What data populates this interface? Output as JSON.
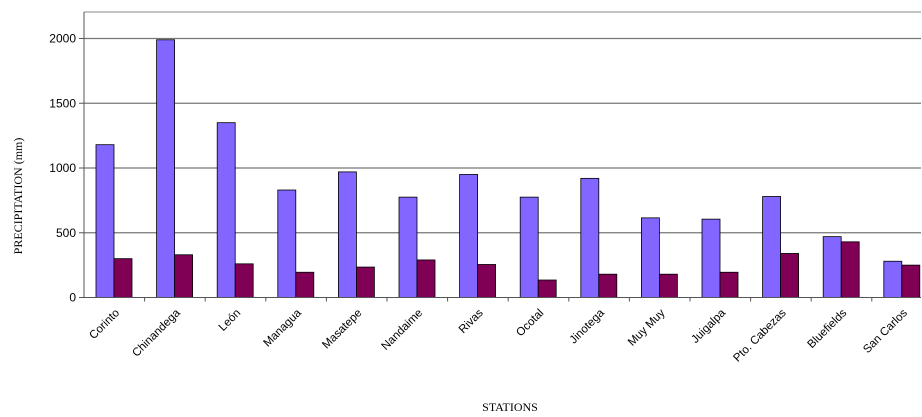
{
  "chart_data": {
    "type": "bar",
    "xlabel": "STATIONS",
    "ylabel": "PRECIPITATION (mm)",
    "ylim": [
      0,
      2000
    ],
    "yticks": [
      "0",
      "500",
      "1000",
      "1500",
      "2000"
    ],
    "grid": true,
    "categories": [
      "Corinto",
      "Chinandega",
      "León",
      "Managua",
      "Masatepe",
      "Nandaime",
      "Rivas",
      "Ocotal",
      "Jinotega",
      "Muy Muy",
      "Juigalpa",
      "Pto. Cabezas",
      "Bluefields",
      "San Carlos"
    ],
    "series": [
      {
        "color": "#8266ff",
        "values": [
          1180,
          1990,
          1350,
          830,
          970,
          775,
          950,
          775,
          920,
          615,
          605,
          780,
          470,
          280
        ]
      },
      {
        "color": "#800055",
        "values": [
          300,
          330,
          260,
          195,
          235,
          290,
          255,
          135,
          180,
          180,
          195,
          340,
          430,
          250
        ]
      }
    ]
  }
}
